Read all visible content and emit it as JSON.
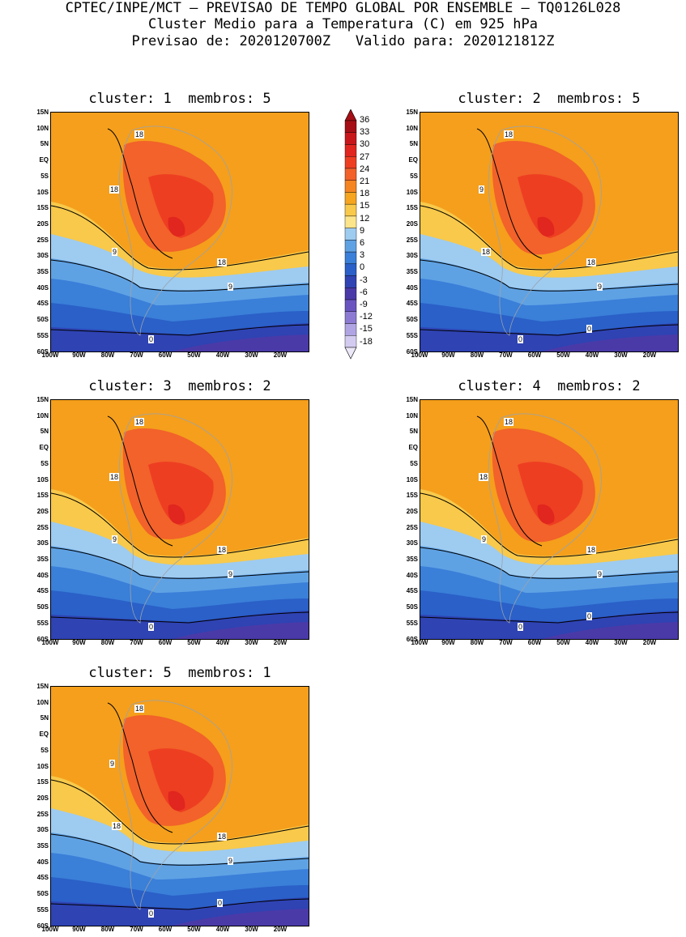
{
  "header": {
    "line1": "CPTEC/INPE/MCT – PREVISAO DE TEMPO GLOBAL POR ENSEMBLE – TQ0126L028",
    "line2": "Cluster Medio para a Temperatura (C) em 925 hPa",
    "line3": "Previsao de: 2020120700Z   Valido para: 2020121812Z"
  },
  "panels": [
    {
      "title": "cluster: 1  membros: 5",
      "labels": [
        "18",
        "18",
        "9",
        "18",
        "9",
        "0"
      ]
    },
    {
      "title": "cluster: 2  membros: 5",
      "labels": [
        "18",
        "9",
        "18",
        "18",
        "9",
        "0",
        "0"
      ]
    },
    {
      "title": "cluster: 3  membros: 2",
      "labels": [
        "18",
        "18",
        "9",
        "18",
        "9",
        "0"
      ]
    },
    {
      "title": "cluster: 4  membros: 2",
      "labels": [
        "18",
        "18",
        "9",
        "18",
        "9",
        "0",
        "0"
      ]
    },
    {
      "title": "cluster: 5  membros: 1",
      "labels": [
        "18",
        "9",
        "18",
        "18",
        "9",
        "0",
        "0"
      ]
    }
  ],
  "lat_ticks": [
    "15N",
    "10N",
    "5N",
    "EQ",
    "5S",
    "10S",
    "15S",
    "20S",
    "25S",
    "30S",
    "35S",
    "40S",
    "45S",
    "50S",
    "55S",
    "60S"
  ],
  "lon_ticks": [
    "100W",
    "90W",
    "80W",
    "70W",
    "60W",
    "50W",
    "40W",
    "30W",
    "20W"
  ],
  "colorbar": {
    "labels": [
      "36",
      "33",
      "30",
      "27",
      "24",
      "21",
      "18",
      "15",
      "12",
      "9",
      "6",
      "3",
      "0",
      "-3",
      "-6",
      "-9",
      "-12",
      "-15",
      "-18"
    ],
    "colors": [
      "#a50f15",
      "#c8171b",
      "#e0261e",
      "#ee3e22",
      "#f2622a",
      "#f58521",
      "#f5a51f",
      "#f8c94a",
      "#fbe48a",
      "#9ecbf0",
      "#5fa2e4",
      "#3a7fd8",
      "#2a60c8",
      "#2f43b3",
      "#4a3aa8",
      "#6a55c0",
      "#8d7bd3",
      "#b0a4e3",
      "#d4ccf0"
    ]
  }
}
